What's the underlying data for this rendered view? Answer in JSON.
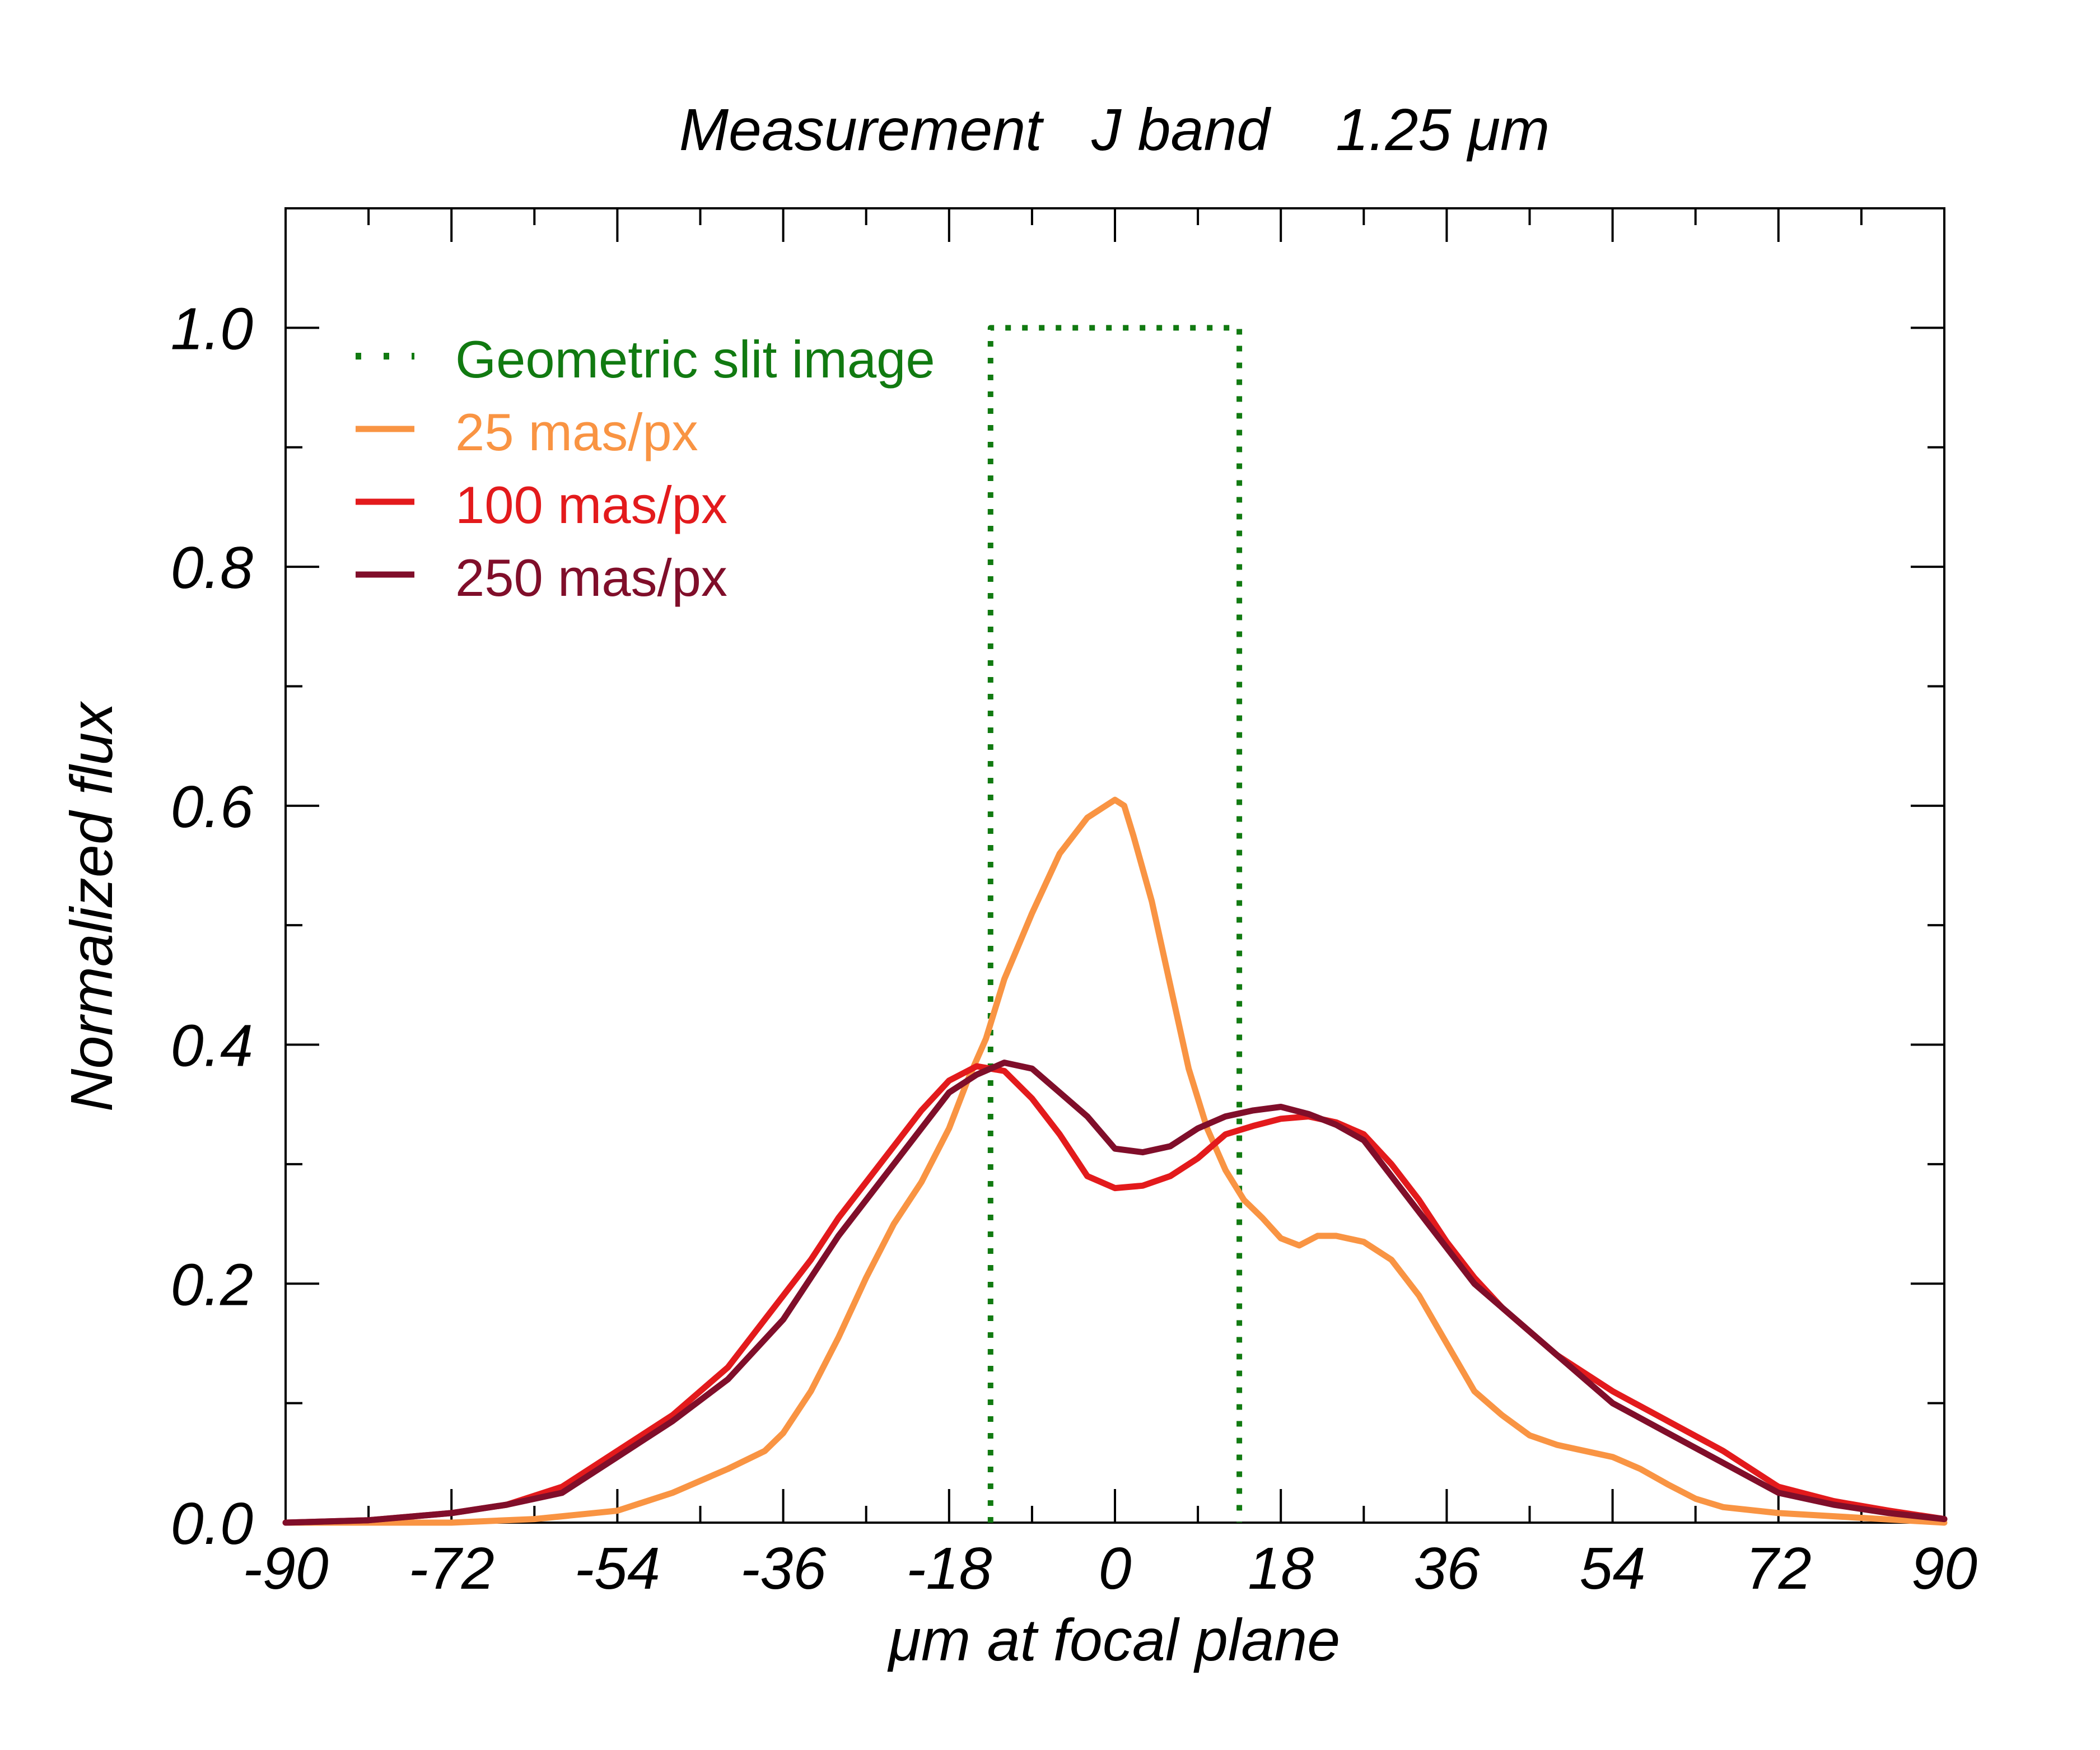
{
  "chart_data": {
    "type": "line",
    "title": "Measurement   J band    1.25 μm",
    "xlabel": "μm at focal plane",
    "ylabel": "Normalized flux",
    "xlim": [
      -90,
      90
    ],
    "ylim": [
      0,
      1.1
    ],
    "xticks": [
      -90,
      -72,
      -54,
      -36,
      -18,
      0,
      18,
      36,
      54,
      72,
      90
    ],
    "xtick_labels": [
      "-90",
      "-72",
      "-54",
      "-36",
      "-18",
      "0",
      "18",
      "36",
      "54",
      "72",
      "90"
    ],
    "yticks": [
      0.0,
      0.2,
      0.4,
      0.6,
      0.8,
      1.0
    ],
    "ytick_labels": [
      "0.0",
      "0.2",
      "0.4",
      "0.6",
      "0.8",
      "1.0"
    ],
    "legend_position": "top-left",
    "series": [
      {
        "name": "Geometric slit image",
        "color": "#117a11",
        "style": "dotted",
        "x": [
          -13.5,
          -13.5,
          13.5,
          13.5
        ],
        "y": [
          0.0,
          1.0,
          1.0,
          0.0
        ]
      },
      {
        "name": "25 mas/px",
        "color": "#f99443",
        "style": "solid",
        "x": [
          -90,
          -72,
          -63,
          -54,
          -48,
          -42,
          -38,
          -36,
          -33,
          -30,
          -27,
          -24,
          -21,
          -18,
          -16,
          -14,
          -12,
          -9,
          -6,
          -3,
          -1,
          0,
          1,
          2,
          4,
          6,
          8,
          10,
          12,
          14,
          16,
          18,
          20,
          22,
          24,
          27,
          30,
          33,
          36,
          39,
          42,
          45,
          48,
          51,
          54,
          57,
          60,
          63,
          66,
          72,
          81,
          90
        ],
        "y": [
          0.0,
          0.0,
          0.003,
          0.01,
          0.025,
          0.045,
          0.06,
          0.075,
          0.11,
          0.155,
          0.205,
          0.25,
          0.285,
          0.33,
          0.37,
          0.405,
          0.455,
          0.51,
          0.56,
          0.59,
          0.6,
          0.605,
          0.6,
          0.575,
          0.52,
          0.45,
          0.38,
          0.33,
          0.295,
          0.27,
          0.255,
          0.238,
          0.232,
          0.24,
          0.24,
          0.235,
          0.22,
          0.19,
          0.15,
          0.11,
          0.09,
          0.073,
          0.065,
          0.06,
          0.055,
          0.045,
          0.032,
          0.02,
          0.013,
          0.008,
          0.004,
          0.0
        ]
      },
      {
        "name": "100 mas/px",
        "color": "#e31a1c",
        "style": "solid",
        "x": [
          -90,
          -81,
          -72,
          -66,
          -60,
          -54,
          -48,
          -42,
          -36,
          -33,
          -30,
          -27,
          -24,
          -21,
          -18,
          -15,
          -12,
          -9,
          -6,
          -3,
          0,
          3,
          6,
          9,
          12,
          15,
          18,
          21,
          24,
          27,
          30,
          33,
          36,
          39,
          42,
          45,
          48,
          51,
          54,
          60,
          66,
          72,
          78,
          84,
          90
        ],
        "y": [
          0.0,
          0.002,
          0.008,
          0.015,
          0.03,
          0.06,
          0.09,
          0.13,
          0.19,
          0.22,
          0.255,
          0.285,
          0.315,
          0.345,
          0.37,
          0.382,
          0.378,
          0.355,
          0.325,
          0.29,
          0.28,
          0.282,
          0.29,
          0.305,
          0.325,
          0.332,
          0.338,
          0.34,
          0.335,
          0.325,
          0.3,
          0.27,
          0.235,
          0.205,
          0.18,
          0.16,
          0.14,
          0.125,
          0.11,
          0.085,
          0.06,
          0.03,
          0.018,
          0.01,
          0.003
        ]
      },
      {
        "name": "250 mas/px",
        "color": "#800e2a",
        "style": "solid",
        "x": [
          -90,
          -81,
          -72,
          -66,
          -60,
          -54,
          -48,
          -42,
          -36,
          -33,
          -30,
          -27,
          -24,
          -21,
          -18,
          -15,
          -12,
          -9,
          -6,
          -3,
          0,
          3,
          6,
          9,
          12,
          15,
          18,
          21,
          24,
          27,
          30,
          33,
          36,
          39,
          42,
          45,
          48,
          51,
          54,
          60,
          66,
          72,
          78,
          84,
          90
        ],
        "y": [
          0.0,
          0.002,
          0.008,
          0.015,
          0.025,
          0.055,
          0.085,
          0.12,
          0.17,
          0.205,
          0.24,
          0.27,
          0.3,
          0.33,
          0.36,
          0.375,
          0.385,
          0.38,
          0.36,
          0.34,
          0.313,
          0.31,
          0.315,
          0.33,
          0.34,
          0.345,
          0.348,
          0.342,
          0.333,
          0.32,
          0.29,
          0.26,
          0.23,
          0.2,
          0.18,
          0.16,
          0.14,
          0.12,
          0.1,
          0.075,
          0.05,
          0.025,
          0.015,
          0.008,
          0.003
        ]
      }
    ]
  }
}
